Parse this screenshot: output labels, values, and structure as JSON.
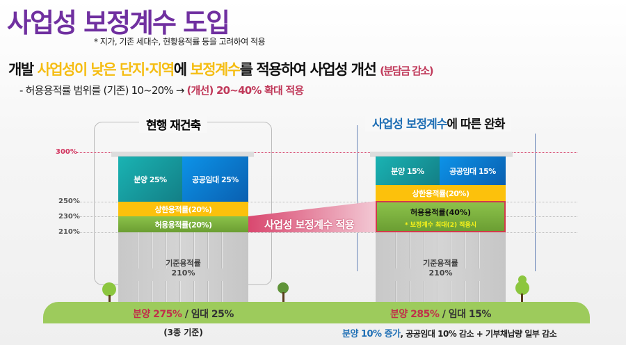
{
  "title": "사업성 보정계수 도입",
  "note": "* 지가, 기존 세대수, 현황용적률 등을 고려하여 적용",
  "headline": {
    "p1": "개발 ",
    "p2": "사업성이 낮은 단지·지역",
    "p3": "에 ",
    "p4": "보정계수",
    "p5": "를 적용하여 사업성 개선 ",
    "p6": "(분담금 감소)"
  },
  "sub": {
    "p1": "- 허용용적률 범위를 (기존) 10~20% → ",
    "p2": "(개선) 20~40% 확대 적용"
  },
  "axis": {
    "p300": "300%",
    "p250": "250%",
    "p230": "230%",
    "p210": "210%"
  },
  "left": {
    "title": "현행  재건축",
    "sale": "분양 25%",
    "rental": "공공임대 25%",
    "upper": "상한용적률(20%)",
    "allowed": "허용용적률(20%)",
    "base1": "기준용적률",
    "base2": "210%",
    "ground_sale": "분양 275%",
    "ground_rest": " / 임대 25%",
    "footnote": "(3종 기준)"
  },
  "arrow_label": "사업성 보정계수 적용",
  "right": {
    "title_blue": "사업성 보정계수",
    "title_rest": "에 따른 완화",
    "sale": "분양 15%",
    "rental": "공공임대 15%",
    "upper": "상한용적률(20%)",
    "allowed": "허용용적률(40%)",
    "allowed_note": "* 보정계수 최대(2) 적용시",
    "base1": "기준용적률",
    "base2": "210%",
    "ground_sale": "분양 285%",
    "ground_rest": " / 임대 15%",
    "foot_blue": "분양 10% 증가",
    "foot_rest": ", 공공임대 10% 감소 + 기부채납량 일부 감소"
  },
  "colors": {
    "title": "#7030a0",
    "highlight": "#f5bd13",
    "accent": "#c0395a",
    "blue": "#1f6fb5"
  }
}
